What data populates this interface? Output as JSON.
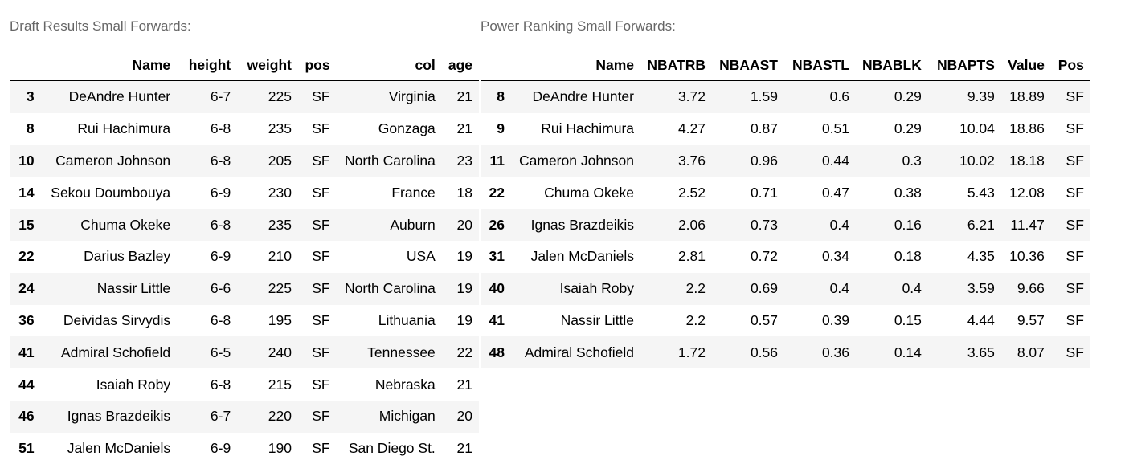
{
  "draft": {
    "caption": "Draft Results Small Forwards:",
    "columns": [
      "",
      "Name",
      "height",
      "weight",
      "pos",
      "col",
      "age"
    ],
    "rows": [
      [
        "3",
        "DeAndre Hunter",
        "6-7",
        "225",
        "SF",
        "Virginia",
        "21"
      ],
      [
        "8",
        "Rui Hachimura",
        "6-8",
        "235",
        "SF",
        "Gonzaga",
        "21"
      ],
      [
        "10",
        "Cameron Johnson",
        "6-8",
        "205",
        "SF",
        "North Carolina",
        "23"
      ],
      [
        "14",
        "Sekou Doumbouya",
        "6-9",
        "230",
        "SF",
        "France",
        "18"
      ],
      [
        "15",
        "Chuma Okeke",
        "6-8",
        "235",
        "SF",
        "Auburn",
        "20"
      ],
      [
        "22",
        "Darius Bazley",
        "6-9",
        "210",
        "SF",
        "USA",
        "19"
      ],
      [
        "24",
        "Nassir Little",
        "6-6",
        "225",
        "SF",
        "North Carolina",
        "19"
      ],
      [
        "36",
        "Deividas Sirvydis",
        "6-8",
        "195",
        "SF",
        "Lithuania",
        "19"
      ],
      [
        "41",
        "Admiral Schofield",
        "6-5",
        "240",
        "SF",
        "Tennessee",
        "22"
      ],
      [
        "44",
        "Isaiah Roby",
        "6-8",
        "215",
        "SF",
        "Nebraska",
        "21"
      ],
      [
        "46",
        "Ignas Brazdeikis",
        "6-7",
        "220",
        "SF",
        "Michigan",
        "20"
      ],
      [
        "51",
        "Jalen McDaniels",
        "6-9",
        "190",
        "SF",
        "San Diego St.",
        "21"
      ]
    ]
  },
  "power": {
    "caption": "Power Ranking Small Forwards:",
    "columns": [
      "",
      "Name",
      "NBATRB",
      "NBAAST",
      "NBASTL",
      "NBABLK",
      "NBAPTS",
      "Value",
      "Pos"
    ],
    "rows": [
      [
        "8",
        "DeAndre Hunter",
        "3.72",
        "1.59",
        "0.6",
        "0.29",
        "9.39",
        "18.89",
        "SF"
      ],
      [
        "9",
        "Rui Hachimura",
        "4.27",
        "0.87",
        "0.51",
        "0.29",
        "10.04",
        "18.86",
        "SF"
      ],
      [
        "11",
        "Cameron Johnson",
        "3.76",
        "0.96",
        "0.44",
        "0.3",
        "10.02",
        "18.18",
        "SF"
      ],
      [
        "22",
        "Chuma Okeke",
        "2.52",
        "0.71",
        "0.47",
        "0.38",
        "5.43",
        "12.08",
        "SF"
      ],
      [
        "26",
        "Ignas Brazdeikis",
        "2.06",
        "0.73",
        "0.4",
        "0.16",
        "6.21",
        "11.47",
        "SF"
      ],
      [
        "31",
        "Jalen McDaniels",
        "2.81",
        "0.72",
        "0.34",
        "0.18",
        "4.35",
        "10.36",
        "SF"
      ],
      [
        "40",
        "Isaiah Roby",
        "2.2",
        "0.69",
        "0.4",
        "0.4",
        "3.59",
        "9.66",
        "SF"
      ],
      [
        "41",
        "Nassir Little",
        "2.2",
        "0.57",
        "0.39",
        "0.15",
        "4.44",
        "9.57",
        "SF"
      ],
      [
        "48",
        "Admiral Schofield",
        "1.72",
        "0.56",
        "0.36",
        "0.14",
        "3.65",
        "8.07",
        "SF"
      ]
    ]
  }
}
